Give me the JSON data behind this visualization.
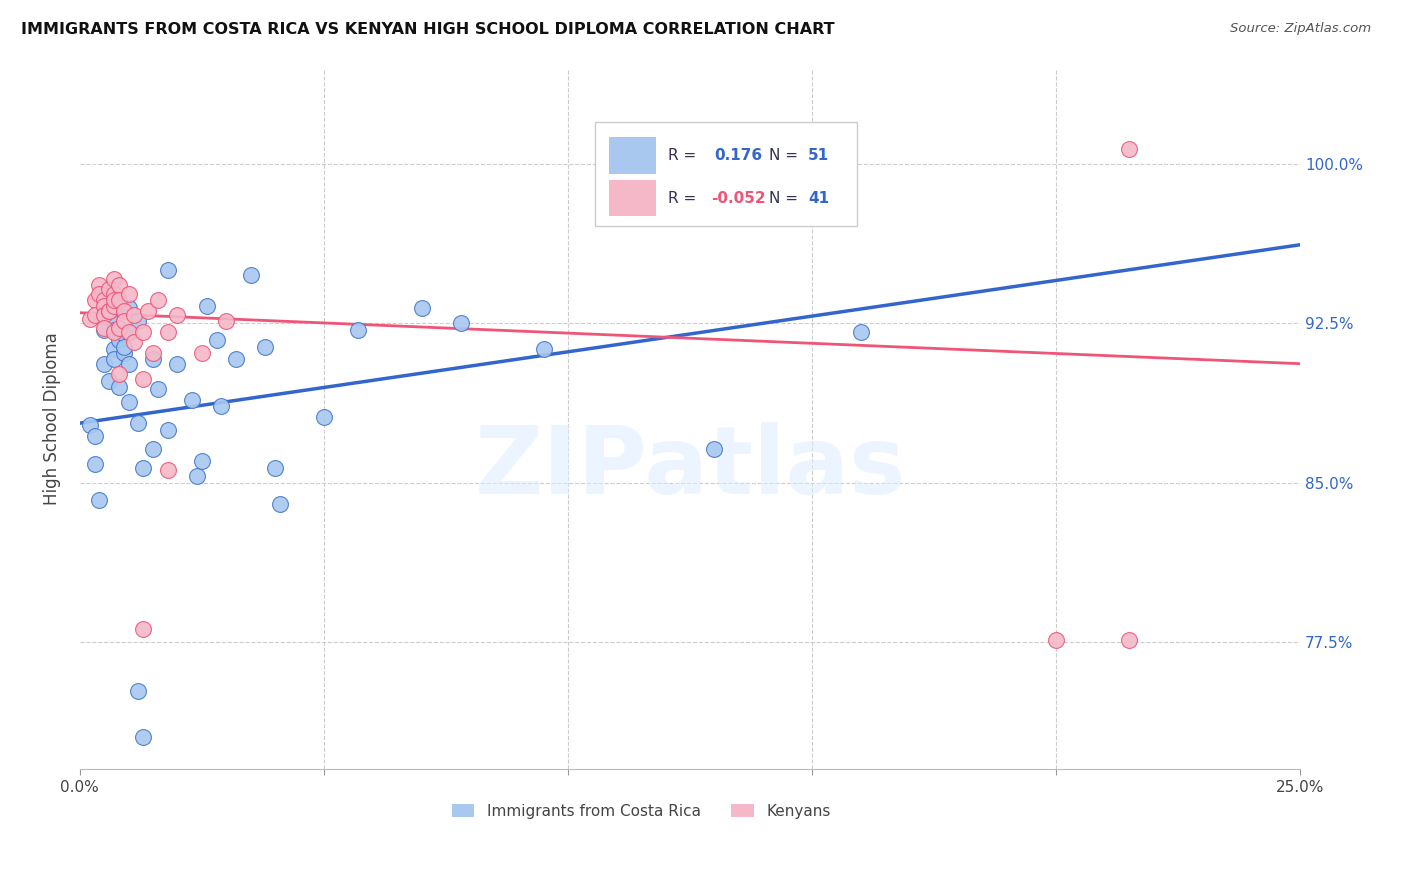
{
  "title": "IMMIGRANTS FROM COSTA RICA VS KENYAN HIGH SCHOOL DIPLOMA CORRELATION CHART",
  "source": "Source: ZipAtlas.com",
  "ylabel": "High School Diploma",
  "ytick_labels": [
    "77.5%",
    "85.0%",
    "92.5%",
    "100.0%"
  ],
  "ytick_values": [
    0.775,
    0.85,
    0.925,
    1.0
  ],
  "xlim": [
    0.0,
    0.25
  ],
  "ylim": [
    0.715,
    1.045
  ],
  "legend_r_blue": "0.176",
  "legend_n_blue": "51",
  "legend_r_pink": "-0.052",
  "legend_n_pink": "41",
  "blue_fill": "#a8c8f0",
  "pink_fill": "#f5b8c8",
  "blue_edge": "#4477cc",
  "pink_edge": "#ee5577",
  "blue_line": "#3366cc",
  "pink_line": "#ee5577",
  "blue_line_y": [
    0.878,
    0.962
  ],
  "pink_line_y": [
    0.93,
    0.906
  ],
  "legend_series": [
    "Immigrants from Costa Rica",
    "Kenyans"
  ],
  "blue_scatter": [
    [
      0.002,
      0.877
    ],
    [
      0.003,
      0.859
    ],
    [
      0.003,
      0.872
    ],
    [
      0.004,
      0.842
    ],
    [
      0.005,
      0.906
    ],
    [
      0.005,
      0.922
    ],
    [
      0.006,
      0.928
    ],
    [
      0.006,
      0.938
    ],
    [
      0.006,
      0.898
    ],
    [
      0.007,
      0.913
    ],
    [
      0.007,
      0.908
    ],
    [
      0.007,
      0.922
    ],
    [
      0.008,
      0.933
    ],
    [
      0.008,
      0.917
    ],
    [
      0.008,
      0.895
    ],
    [
      0.009,
      0.911
    ],
    [
      0.009,
      0.92
    ],
    [
      0.009,
      0.914
    ],
    [
      0.01,
      0.906
    ],
    [
      0.01,
      0.921
    ],
    [
      0.01,
      0.932
    ],
    [
      0.01,
      0.888
    ],
    [
      0.012,
      0.878
    ],
    [
      0.012,
      0.926
    ],
    [
      0.013,
      0.857
    ],
    [
      0.015,
      0.908
    ],
    [
      0.015,
      0.866
    ],
    [
      0.016,
      0.894
    ],
    [
      0.018,
      0.95
    ],
    [
      0.018,
      0.875
    ],
    [
      0.02,
      0.906
    ],
    [
      0.023,
      0.889
    ],
    [
      0.024,
      0.853
    ],
    [
      0.025,
      0.86
    ],
    [
      0.026,
      0.933
    ],
    [
      0.028,
      0.917
    ],
    [
      0.029,
      0.886
    ],
    [
      0.032,
      0.908
    ],
    [
      0.035,
      0.948
    ],
    [
      0.038,
      0.914
    ],
    [
      0.04,
      0.857
    ],
    [
      0.041,
      0.84
    ],
    [
      0.05,
      0.881
    ],
    [
      0.057,
      0.922
    ],
    [
      0.07,
      0.932
    ],
    [
      0.078,
      0.925
    ],
    [
      0.095,
      0.913
    ],
    [
      0.13,
      0.866
    ],
    [
      0.16,
      0.921
    ],
    [
      0.012,
      0.752
    ],
    [
      0.013,
      0.73
    ]
  ],
  "pink_scatter": [
    [
      0.002,
      0.927
    ],
    [
      0.003,
      0.936
    ],
    [
      0.003,
      0.929
    ],
    [
      0.004,
      0.943
    ],
    [
      0.004,
      0.939
    ],
    [
      0.005,
      0.936
    ],
    [
      0.005,
      0.933
    ],
    [
      0.005,
      0.929
    ],
    [
      0.005,
      0.923
    ],
    [
      0.006,
      0.941
    ],
    [
      0.006,
      0.931
    ],
    [
      0.006,
      0.931
    ],
    [
      0.007,
      0.939
    ],
    [
      0.007,
      0.933
    ],
    [
      0.007,
      0.936
    ],
    [
      0.007,
      0.946
    ],
    [
      0.007,
      0.921
    ],
    [
      0.008,
      0.943
    ],
    [
      0.008,
      0.936
    ],
    [
      0.008,
      0.923
    ],
    [
      0.008,
      0.901
    ],
    [
      0.009,
      0.931
    ],
    [
      0.009,
      0.926
    ],
    [
      0.01,
      0.939
    ],
    [
      0.01,
      0.921
    ],
    [
      0.011,
      0.929
    ],
    [
      0.011,
      0.916
    ],
    [
      0.013,
      0.921
    ],
    [
      0.013,
      0.899
    ],
    [
      0.014,
      0.931
    ],
    [
      0.015,
      0.911
    ],
    [
      0.016,
      0.936
    ],
    [
      0.018,
      0.921
    ],
    [
      0.02,
      0.929
    ],
    [
      0.025,
      0.911
    ],
    [
      0.03,
      0.926
    ],
    [
      0.018,
      0.856
    ],
    [
      0.013,
      0.781
    ],
    [
      0.2,
      0.776
    ],
    [
      0.215,
      0.776
    ],
    [
      0.215,
      1.007
    ]
  ]
}
